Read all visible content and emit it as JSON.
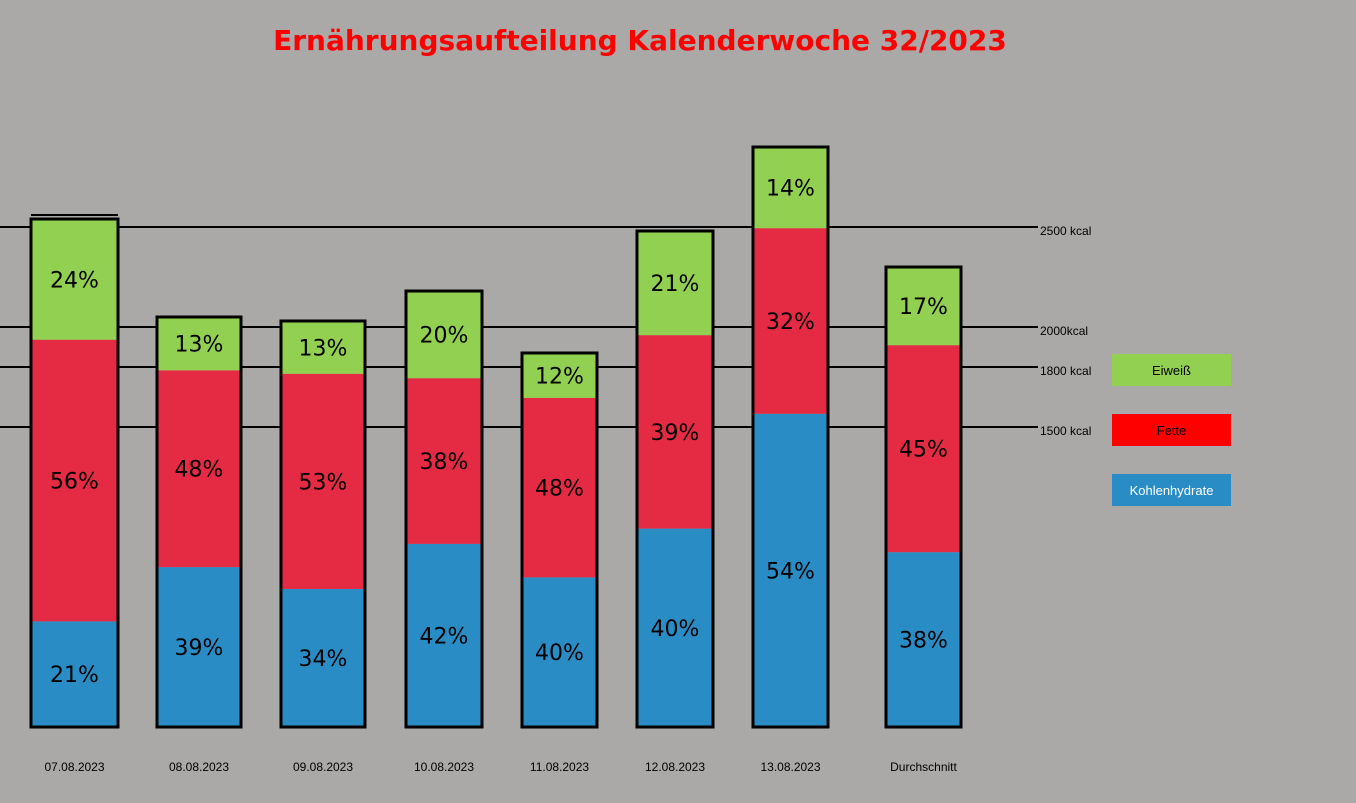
{
  "chart_data": {
    "type": "bar",
    "stacked": true,
    "title": "Ernährungsaufteilung Kalenderwoche 32/2023",
    "categories": [
      "07.08.2023",
      "08.08.2023",
      "09.08.2023",
      "10.08.2023",
      "11.08.2023",
      "12.08.2023",
      "13.08.2023",
      "Durchschnitt"
    ],
    "totals_kcal": [
      2540,
      2050,
      2030,
      2180,
      1870,
      2480,
      2900,
      2300
    ],
    "series": [
      {
        "name": "Kohlenhydrate",
        "color": "#2a8cc4",
        "values": [
          21,
          39,
          34,
          42,
          40,
          40,
          54,
          38
        ],
        "labels": [
          "21%",
          "39%",
          "34%",
          "42%",
          "40%",
          "40%",
          "54%",
          "38%"
        ]
      },
      {
        "name": "Fette",
        "color": "#e52b43",
        "values": [
          56,
          48,
          53,
          38,
          48,
          39,
          32,
          45
        ],
        "labels": [
          "56%",
          "48%",
          "53%",
          "38%",
          "48%",
          "39%",
          "32%",
          "45%"
        ]
      },
      {
        "name": "Eiweiß",
        "color": "#91d050",
        "values": [
          24,
          13,
          13,
          20,
          12,
          21,
          14,
          17
        ],
        "labels": [
          "24%",
          "13%",
          "13%",
          "20%",
          "12%",
          "21%",
          "14%",
          "17%"
        ]
      }
    ],
    "reference_lines": [
      {
        "value": 2500,
        "label": "2500 kcal"
      },
      {
        "value": 2000,
        "label": "2000kcal"
      },
      {
        "value": 1800,
        "label": "1800 kcal"
      },
      {
        "value": 1500,
        "label": "1500 kcal"
      }
    ],
    "legend": {
      "position": "right",
      "items": [
        {
          "label": "Eiweiß",
          "color": "#91d050",
          "text_color": "#000000"
        },
        {
          "label": "Fette",
          "color": "#ff0000",
          "text_color": "#000000"
        },
        {
          "label": "Kohlenhydrate",
          "color": "#2a8cc4",
          "text_color": "#ffffff"
        }
      ]
    },
    "title_color": "#ff0000"
  }
}
